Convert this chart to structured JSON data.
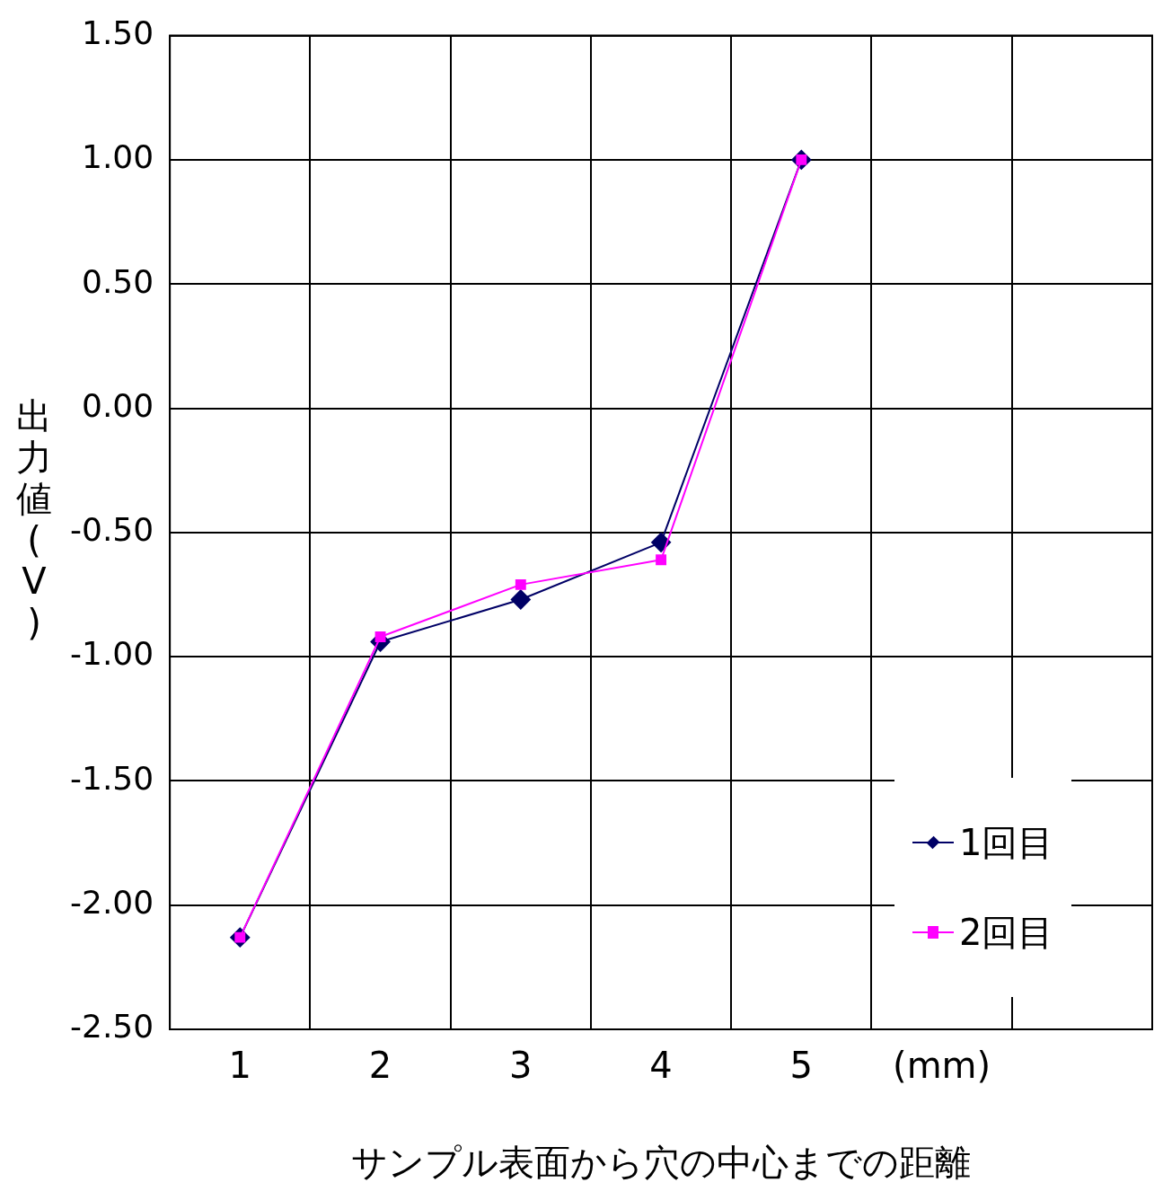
{
  "chart_data": {
    "type": "line",
    "xlabel": "サンプル表面から穴の中心までの距離",
    "ylabel": "出力値(V)",
    "categories": [
      "1",
      "2",
      "3",
      "4",
      "5",
      "(mm)",
      null
    ],
    "series": [
      {
        "name": "1回目",
        "color": "#000066",
        "marker": "diamond",
        "values": [
          -2.13,
          -0.94,
          -0.77,
          -0.54,
          1.0,
          null,
          null
        ]
      },
      {
        "name": "2回目",
        "color": "#ff00ff",
        "marker": "square",
        "values": [
          -2.13,
          -0.92,
          -0.71,
          -0.61,
          1.0,
          null,
          null
        ]
      }
    ],
    "ylim": [
      -2.5,
      1.5
    ],
    "yticks": [
      {
        "value": -2.5,
        "label": "-2.50"
      },
      {
        "value": -2.0,
        "label": "-2.00"
      },
      {
        "value": -1.5,
        "label": "-1.50"
      },
      {
        "value": -1.0,
        "label": "-1.00"
      },
      {
        "value": -0.5,
        "label": "-0.50"
      },
      {
        "value": 0,
        "label": "0.00"
      },
      {
        "value": 0.5,
        "label": "0.50"
      },
      {
        "value": 1.0,
        "label": "1.00"
      },
      {
        "value": 1.5,
        "label": "1.50"
      }
    ],
    "grid": true,
    "legend": "bottom right"
  }
}
